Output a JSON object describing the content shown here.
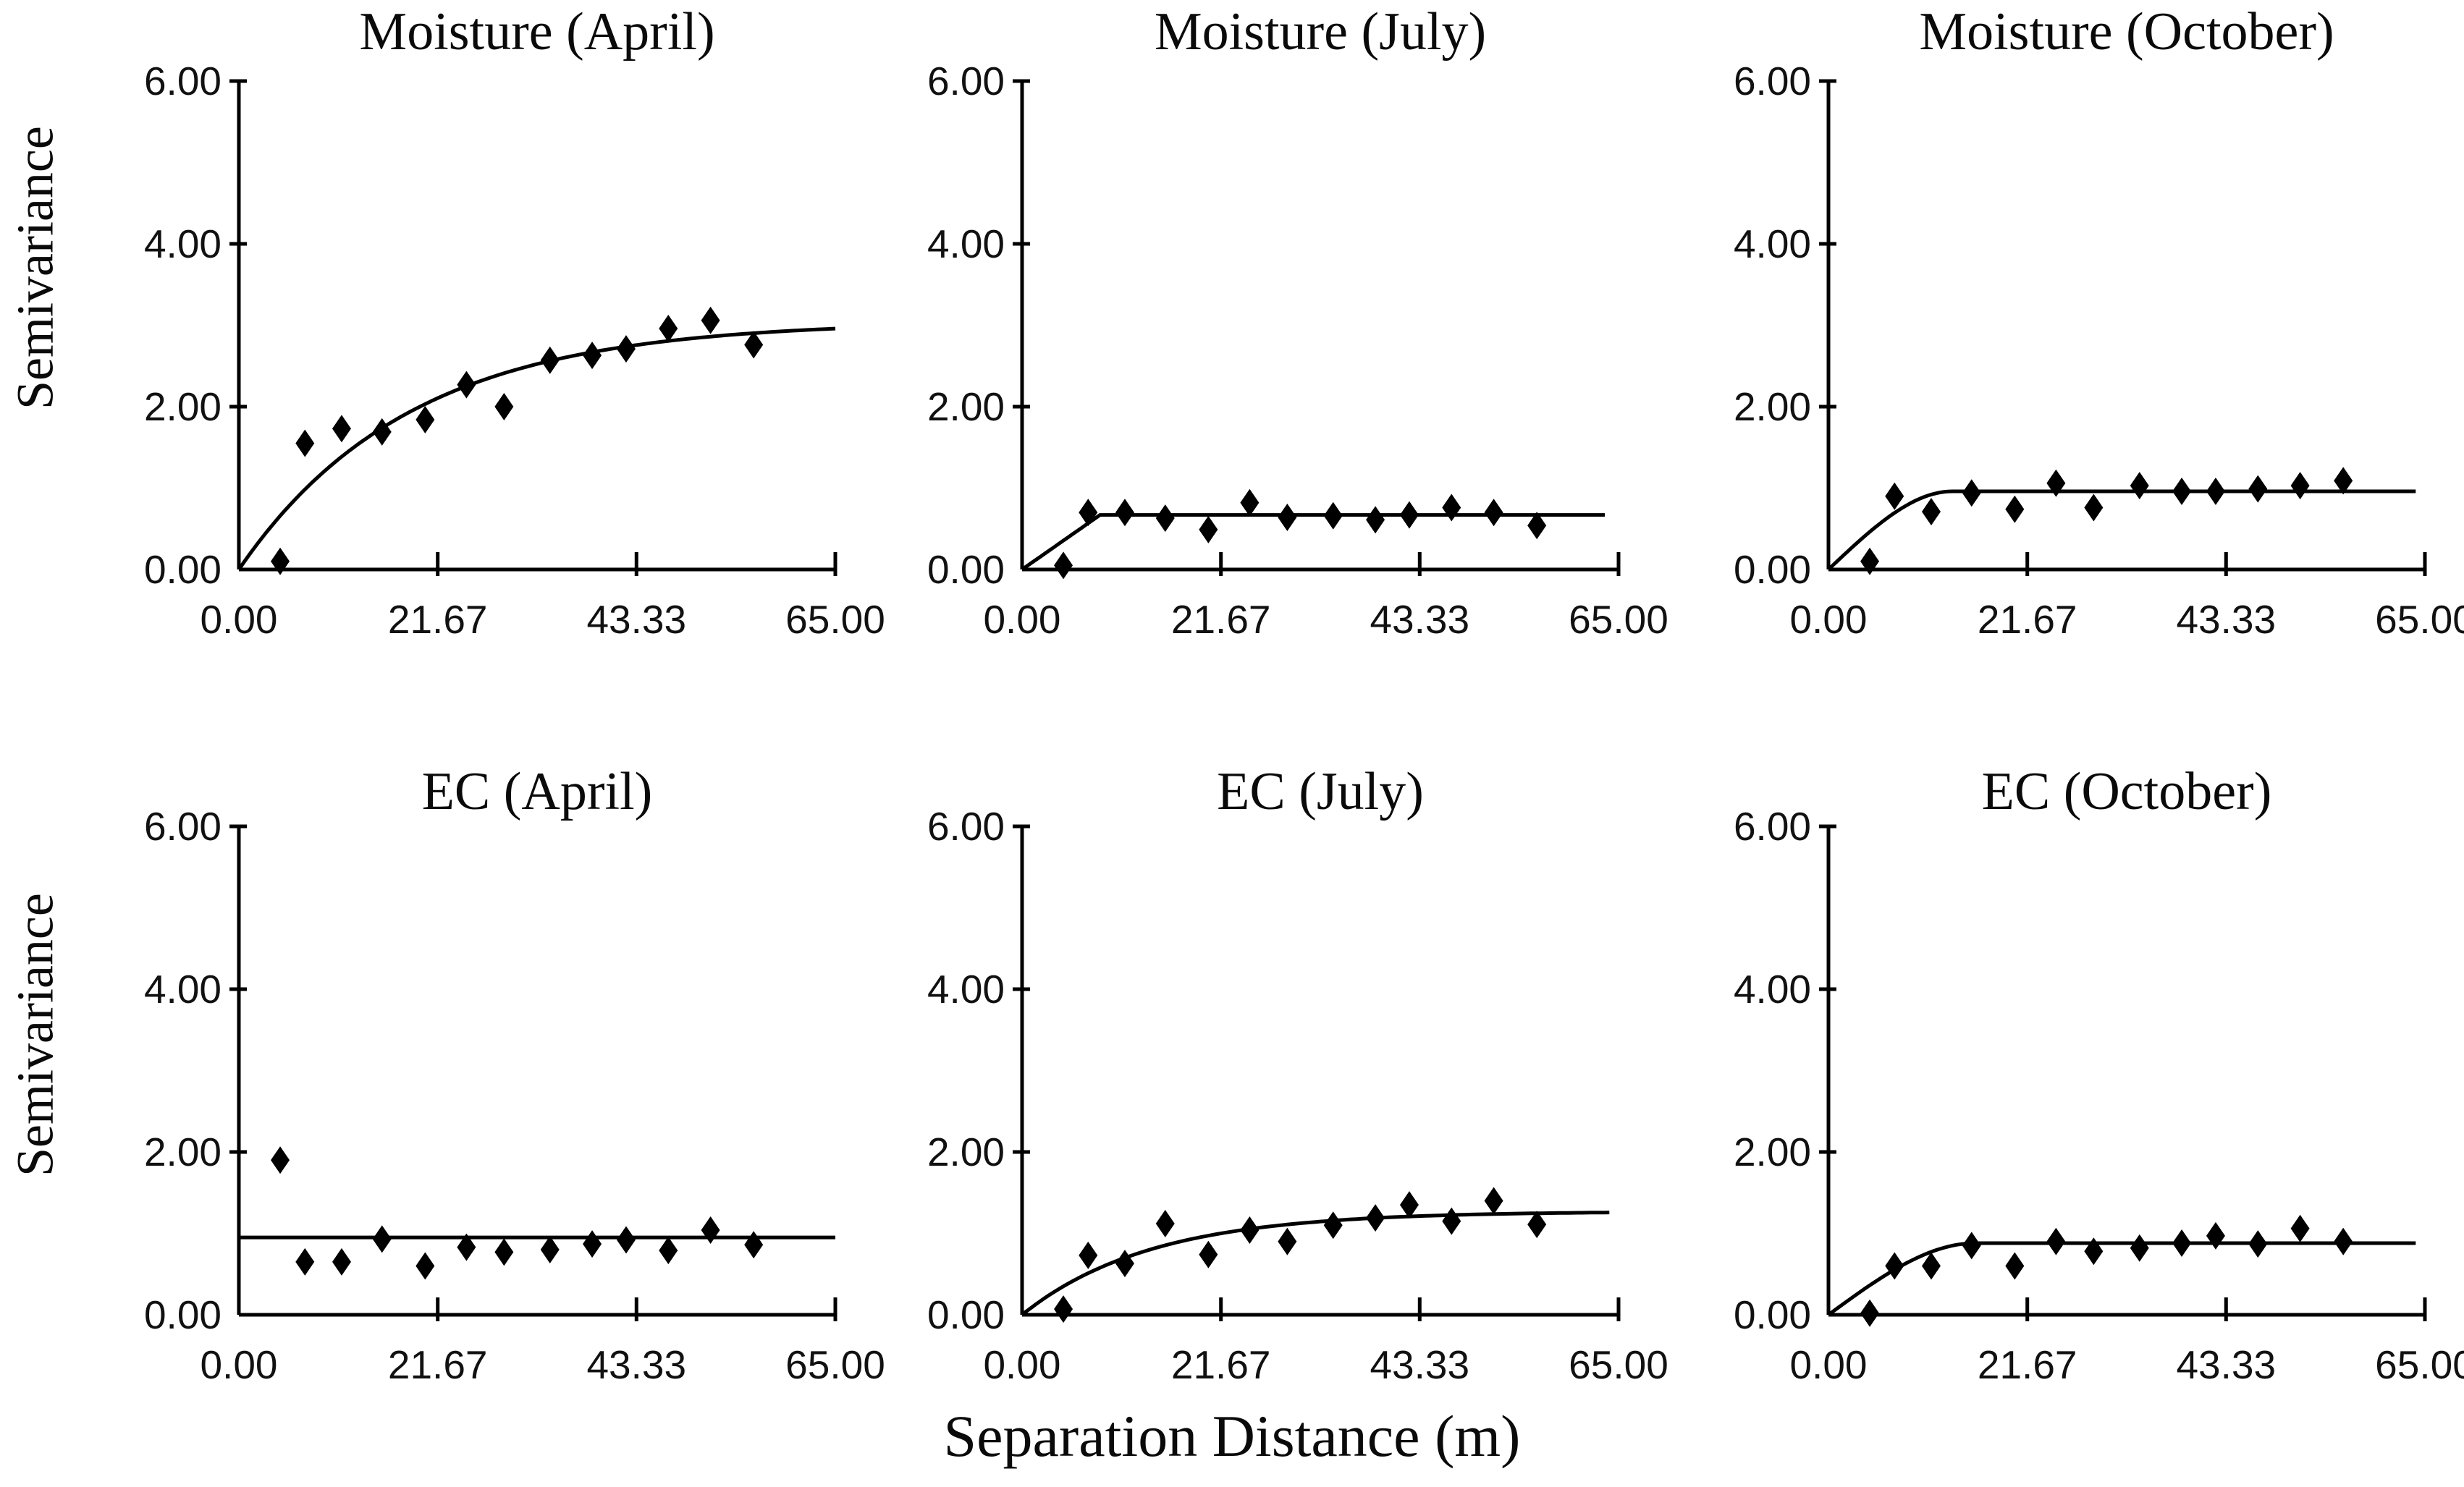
{
  "figure": {
    "y_axis_label": "Semivariance",
    "x_axis_label": "Separation Distance (m)",
    "background": "#ffffff",
    "ink": "#000000"
  },
  "axes": {
    "x_ticks": [
      "0.00",
      "21.67",
      "43.33",
      "65.00"
    ],
    "x_tick_values": [
      0,
      21.67,
      43.33,
      65
    ],
    "y_ticks": [
      "0.00",
      "2.00",
      "4.00",
      "6.00"
    ],
    "y_tick_values": [
      0,
      2,
      4,
      6
    ],
    "xlim": [
      0,
      65
    ],
    "ylim": [
      0,
      6
    ],
    "grid": false,
    "legend": "none"
  },
  "chart_data": [
    {
      "type": "scatter",
      "title": "Moisture (April)",
      "row": 0,
      "col": 0,
      "xlabel": "Separation Distance (m)",
      "ylabel": "Semivariance",
      "x": [
        4.5,
        7.2,
        11.2,
        15.6,
        20.3,
        24.8,
        28.9,
        33.9,
        38.5,
        42.2,
        46.8,
        51.4,
        56.1
      ],
      "y": [
        0.1,
        1.55,
        1.73,
        1.69,
        1.84,
        2.27,
        2.0,
        2.57,
        2.63,
        2.71,
        2.96,
        3.06,
        2.76
      ],
      "fit": {
        "model": "exponential",
        "sill": 3.05,
        "range": 18.5,
        "x_end": 65
      }
    },
    {
      "type": "scatter",
      "title": "Moisture (July)",
      "row": 0,
      "col": 1,
      "xlabel": "Separation Distance (m)",
      "ylabel": "Semivariance",
      "x": [
        4.5,
        7.2,
        11.2,
        15.6,
        20.3,
        24.8,
        28.9,
        33.9,
        38.5,
        42.2,
        46.8,
        51.4,
        56.1
      ],
      "y": [
        0.05,
        0.7,
        0.7,
        0.63,
        0.49,
        0.82,
        0.64,
        0.66,
        0.61,
        0.67,
        0.76,
        0.7,
        0.54
      ],
      "fit": {
        "model": "linear_sill",
        "sill": 0.67,
        "range": 8.5,
        "x_end": 63.5
      }
    },
    {
      "type": "scatter",
      "title": "Moisture (October)",
      "row": 0,
      "col": 2,
      "xlabel": "Separation Distance (m)",
      "ylabel": "Semivariance",
      "x": [
        4.5,
        7.2,
        11.2,
        15.6,
        20.3,
        24.8,
        28.9,
        33.9,
        38.5,
        42.2,
        46.8,
        51.4,
        56.1
      ],
      "y": [
        0.1,
        0.9,
        0.71,
        0.94,
        0.74,
        1.06,
        0.76,
        1.03,
        0.96,
        0.96,
        0.99,
        1.03,
        1.09
      ],
      "fit": {
        "model": "spherical",
        "sill": 0.96,
        "range": 13.5,
        "x_end": 64
      }
    },
    {
      "type": "scatter",
      "title": "EC (April)",
      "row": 1,
      "col": 0,
      "xlabel": "Separation Distance (m)",
      "ylabel": "Semivariance",
      "x": [
        4.5,
        7.2,
        11.2,
        15.6,
        20.3,
        24.8,
        28.9,
        33.9,
        38.5,
        42.2,
        46.8,
        51.4,
        56.1
      ],
      "y": [
        1.9,
        0.65,
        0.65,
        0.93,
        0.6,
        0.83,
        0.77,
        0.8,
        0.87,
        0.92,
        0.79,
        1.04,
        0.86
      ],
      "fit": {
        "model": "nugget",
        "sill": 0.95,
        "range": 0,
        "x_end": 65
      }
    },
    {
      "type": "scatter",
      "title": "EC (July)",
      "row": 1,
      "col": 1,
      "xlabel": "Separation Distance (m)",
      "ylabel": "Semivariance",
      "x": [
        4.5,
        7.2,
        11.2,
        15.6,
        20.3,
        24.8,
        28.9,
        33.9,
        38.5,
        42.2,
        46.8,
        51.4,
        56.1
      ],
      "y": [
        0.07,
        0.73,
        0.63,
        1.12,
        0.74,
        1.04,
        0.9,
        1.1,
        1.19,
        1.35,
        1.15,
        1.4,
        1.11
      ],
      "fit": {
        "model": "exponential",
        "sill": 1.27,
        "range": 14,
        "x_end": 64
      }
    },
    {
      "type": "scatter",
      "title": "EC (October)",
      "row": 1,
      "col": 2,
      "xlabel": "Separation Distance (m)",
      "ylabel": "Semivariance",
      "x": [
        4.5,
        7.2,
        11.2,
        15.6,
        20.3,
        24.8,
        28.9,
        33.9,
        38.5,
        42.2,
        46.8,
        51.4,
        56.1
      ],
      "y": [
        0.02,
        0.6,
        0.6,
        0.85,
        0.6,
        0.9,
        0.78,
        0.82,
        0.88,
        0.97,
        0.87,
        1.06,
        0.9
      ],
      "fit": {
        "model": "spherical",
        "sill": 0.88,
        "range": 16,
        "x_end": 64
      }
    }
  ]
}
